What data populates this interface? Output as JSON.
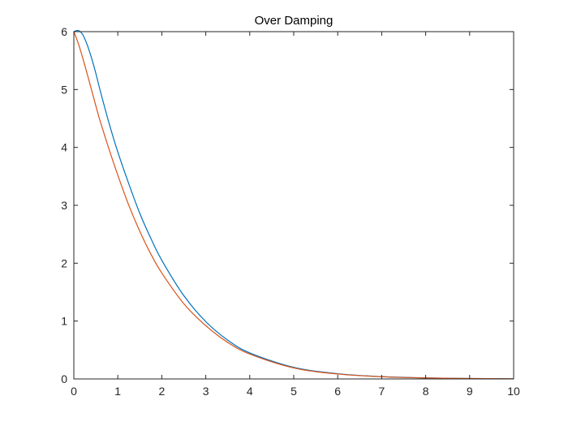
{
  "chart_data": {
    "type": "line",
    "title": "Over Damping",
    "xlabel": "",
    "ylabel": "",
    "xlim": [
      0,
      10
    ],
    "ylim": [
      0,
      6
    ],
    "xticks": [
      0,
      1,
      2,
      3,
      4,
      5,
      6,
      7,
      8,
      9,
      10
    ],
    "yticks": [
      0,
      1,
      2,
      3,
      4,
      5,
      6
    ],
    "grid": false,
    "legend": "none",
    "series": [
      {
        "color": "#0072BD",
        "x": [
          0,
          0.1,
          0.2,
          0.3,
          0.4,
          0.5,
          0.6,
          0.8,
          1,
          1.25,
          1.5,
          1.75,
          2,
          2.5,
          3,
          3.5,
          4,
          5,
          6,
          7,
          8,
          9,
          10
        ],
        "y": [
          6.0,
          6.02,
          5.95,
          5.78,
          5.55,
          5.28,
          4.98,
          4.42,
          3.92,
          3.37,
          2.86,
          2.43,
          2.05,
          1.44,
          0.99,
          0.67,
          0.45,
          0.2,
          0.09,
          0.04,
          0.018,
          0.008,
          0.003
        ]
      },
      {
        "color": "#D95319",
        "x": [
          0,
          0.1,
          0.2,
          0.3,
          0.4,
          0.5,
          0.6,
          0.8,
          1,
          1.25,
          1.5,
          1.75,
          2,
          2.5,
          3,
          3.5,
          4,
          5,
          6,
          7,
          8,
          9,
          10
        ],
        "y": [
          6.0,
          5.8,
          5.55,
          5.28,
          5.0,
          4.72,
          4.45,
          3.97,
          3.52,
          3.0,
          2.55,
          2.16,
          1.83,
          1.3,
          0.92,
          0.63,
          0.43,
          0.19,
          0.085,
          0.038,
          0.017,
          0.008,
          0.003
        ]
      }
    ]
  }
}
